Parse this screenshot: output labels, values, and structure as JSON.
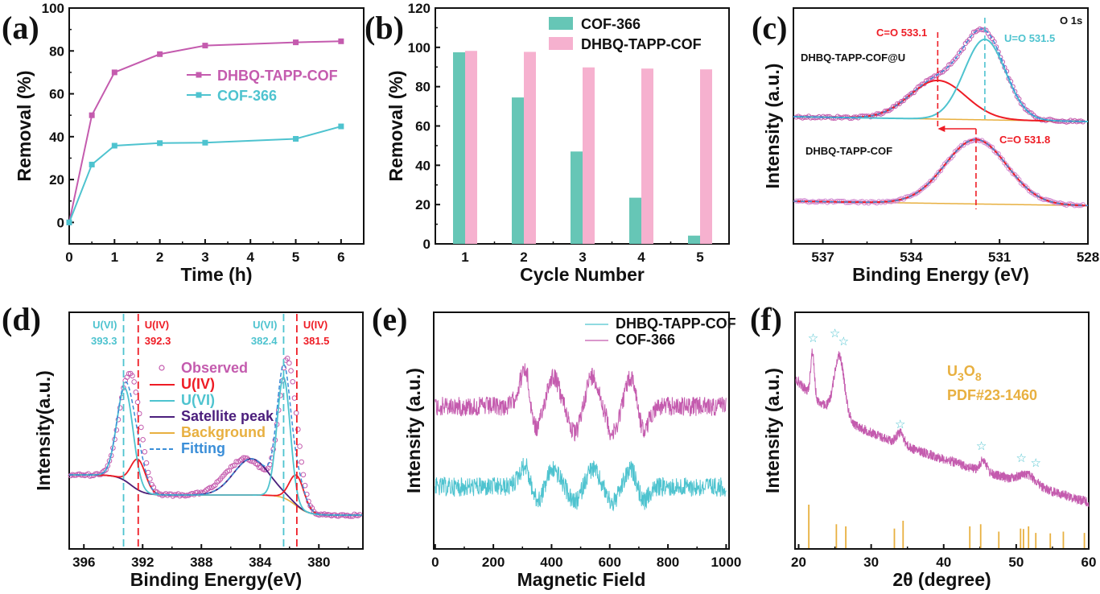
{
  "figure": {
    "panel_labels": [
      "(a)",
      "(b)",
      "(c)",
      "(d)",
      "(e)",
      "(f)"
    ],
    "colors": {
      "magenta": "#c45bae",
      "cyan": "#4ec3cf",
      "teal_bar": "#66c6b6",
      "pink_bar": "#f6b1cf",
      "red": "#ee1c25",
      "purple": "#4b1e7c",
      "orange": "#e8b040",
      "blue_dash": "#3a8ed8",
      "dark_text": "#111111"
    }
  },
  "chart_data": [
    {
      "id": "a",
      "type": "line",
      "title": "",
      "xlabel": "Time (h)",
      "ylabel": "Removal (%)",
      "xlim": [
        0,
        6.5
      ],
      "ylim": [
        -10,
        100
      ],
      "xticks": [
        0,
        1,
        2,
        3,
        4,
        5,
        6
      ],
      "yticks": [
        0,
        20,
        40,
        60,
        80,
        100
      ],
      "legend_position": "center-right",
      "series": [
        {
          "name": "DHBQ-TAPP-COF",
          "color": "#c45bae",
          "x": [
            0,
            0.5,
            1,
            2,
            3,
            5,
            6
          ],
          "y": [
            0,
            50,
            70,
            78.5,
            82.5,
            84,
            84.5
          ]
        },
        {
          "name": "COF-366",
          "color": "#4ec3cf",
          "x": [
            0,
            0.5,
            1,
            2,
            3,
            5,
            6
          ],
          "y": [
            0,
            27,
            35.8,
            37,
            37.2,
            39,
            44.8
          ]
        }
      ]
    },
    {
      "id": "b",
      "type": "bar",
      "title": "",
      "xlabel": "Cycle Number",
      "ylabel": "Removal (%)",
      "categories": [
        "1",
        "2",
        "3",
        "4",
        "5"
      ],
      "ylim": [
        0,
        120
      ],
      "yticks": [
        0,
        20,
        40,
        60,
        80,
        100,
        120
      ],
      "legend_position": "top-right",
      "series": [
        {
          "name": "COF-366",
          "color": "#66c6b6",
          "values": [
            97.5,
            74.5,
            47,
            23.5,
            4.2
          ]
        },
        {
          "name": "DHBQ-TAPP-COF",
          "color": "#f6b1cf",
          "values": [
            98.2,
            97.7,
            89.8,
            89.2,
            88.8
          ]
        }
      ]
    },
    {
      "id": "c",
      "type": "line",
      "title": "O 1s",
      "xlabel": "Binding Energy (eV)",
      "ylabel": "Intensity (a.u.)",
      "xlim": [
        538,
        528
      ],
      "xticks": [
        537,
        534,
        531,
        528
      ],
      "yticks": [],
      "traces": [
        {
          "name": "DHBQ-TAPP-COF@U",
          "components": [
            {
              "label": "C=O 533.1",
              "center": 533.1,
              "color": "#ee1c25"
            },
            {
              "label": "U=O 531.5",
              "center": 531.5,
              "color": "#4ec3cf"
            }
          ]
        },
        {
          "name": "DHBQ-TAPP-COF",
          "components": [
            {
              "label": "C=O 531.8",
              "center": 531.8,
              "color": "#ee1c25"
            }
          ]
        }
      ],
      "annotations": [
        "DHBQ-TAPP-COF@U",
        "DHBQ-TAPP-COF",
        "C=O 533.1",
        "U=O 531.5",
        "C=O 531.8",
        "O 1s"
      ]
    },
    {
      "id": "d",
      "type": "line",
      "title": "",
      "xlabel": "Binding Energy(eV)",
      "ylabel": "Intensity(a.u.)",
      "xlim": [
        397,
        377
      ],
      "xticks": [
        396,
        392,
        388,
        384,
        380
      ],
      "yticks": [],
      "legend_position": "center",
      "legend": [
        "Observed",
        "U(IV)",
        "U(VI)",
        "Satellite peak",
        "Background",
        "Fitting"
      ],
      "peak_markers": [
        {
          "label": "U(VI)",
          "value": "393.3",
          "x": 393.3,
          "color": "#4ec3cf"
        },
        {
          "label": "U(IV)",
          "value": "392.3",
          "x": 392.3,
          "color": "#ee1c25"
        },
        {
          "label": "U(VI)",
          "value": "382.4",
          "x": 382.4,
          "color": "#4ec3cf"
        },
        {
          "label": "U(IV)",
          "value": "381.5",
          "x": 381.5,
          "color": "#ee1c25"
        }
      ],
      "satellite_center": 384.5
    },
    {
      "id": "e",
      "type": "line",
      "title": "",
      "xlabel": "Magnetic Field",
      "ylabel": "Intensity (a.u.)",
      "xlim": [
        0,
        1000
      ],
      "xticks": [
        0,
        200,
        400,
        600,
        800,
        1000
      ],
      "yticks": [],
      "legend_position": "top-right",
      "series": [
        {
          "name": "DHBQ-TAPP-COF",
          "color": "#4ec3cf",
          "features_x": [
            310,
            405,
            540,
            675
          ],
          "minima_x": [
            350,
            480,
            610,
            715
          ]
        },
        {
          "name": "COF-366",
          "color": "#c45bae",
          "features_x": [
            310,
            405,
            540,
            675
          ],
          "minima_x": [
            345,
            480,
            610,
            715
          ]
        }
      ]
    },
    {
      "id": "f",
      "type": "line",
      "title": "",
      "xlabel": "2θ (degree)",
      "ylabel": "Intensity (a.u.)",
      "xlim": [
        19.5,
        60
      ],
      "xticks": [
        20,
        30,
        40,
        50,
        60
      ],
      "yticks": [],
      "reference_label_line1": "U",
      "reference_sub1": "3",
      "reference_mid": "O",
      "reference_sub2": "8",
      "reference_label_line2": "PDF#23-1460",
      "star_positions": [
        22,
        25,
        26.2,
        34,
        45.2,
        50.7,
        52.7
      ],
      "reference_lines": [
        {
          "x": 21.4,
          "h": 1.0
        },
        {
          "x": 25.2,
          "h": 0.55
        },
        {
          "x": 26.5,
          "h": 0.5
        },
        {
          "x": 33.2,
          "h": 0.45
        },
        {
          "x": 34.4,
          "h": 0.63
        },
        {
          "x": 43.6,
          "h": 0.5
        },
        {
          "x": 45.1,
          "h": 0.55
        },
        {
          "x": 47.6,
          "h": 0.38
        },
        {
          "x": 50.6,
          "h": 0.45
        },
        {
          "x": 51.0,
          "h": 0.44
        },
        {
          "x": 51.7,
          "h": 0.5
        },
        {
          "x": 52.7,
          "h": 0.35
        },
        {
          "x": 54.7,
          "h": 0.34
        },
        {
          "x": 56.5,
          "h": 0.38
        },
        {
          "x": 59.4,
          "h": 0.35
        }
      ]
    }
  ]
}
